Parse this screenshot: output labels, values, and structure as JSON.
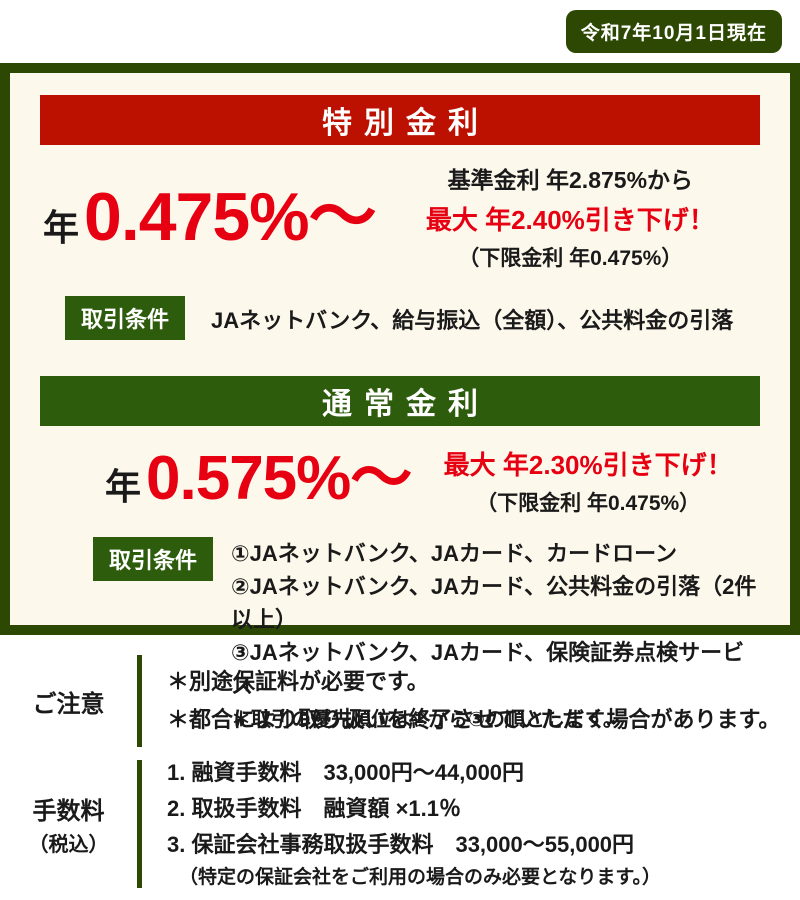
{
  "colors": {
    "dark_green": "#2c4802",
    "mid_green": "#2e5c0d",
    "banner_red": "#bc1000",
    "accent_red": "#e60012",
    "cream_bg": "#fdf8ec"
  },
  "date_badge": {
    "label": "令和7年10月1日現在"
  },
  "special": {
    "title": "特別金利",
    "rate_prefix": "年",
    "rate": "0.475%～",
    "base_line": "基準金利 年2.875%から",
    "discount_line": "最大 年2.40%引き下げ！",
    "floor_line": "（下限金利 年0.475%）",
    "cond_label": "取引条件",
    "cond_text": "JAネットバンク、給与振込（全額）、公共料金の引落"
  },
  "normal": {
    "title": "通常金利",
    "rate_prefix": "年",
    "rate": "0.575%～",
    "discount_line": "最大 年2.30%引き下げ！",
    "floor_line": "（下限金利 年0.475%）",
    "cond_label": "取引条件",
    "cond_items": [
      "①JAネットバンク、JAカード、カードローン",
      "②JAネットバンク、JAカード、公共料金の引落（2件以上）",
      "③JAネットバンク、JAカード、保険証券点検サービス"
    ],
    "cond_note": "＊取引の優先順位は①から③の順とします。"
  },
  "notice": {
    "label": "ご注意",
    "items": [
      "＊別途保証料が必要です。",
      "＊都合により取り扱いを終了させていただく場合があります。"
    ]
  },
  "fees": {
    "label_line1": "手数料",
    "label_line2": "（税込）",
    "items": [
      "1. 融資手数料　33,000円～44,000円",
      "2. 取扱手数料　融資額 ×1.1％",
      "3. 保証会社事務取扱手数料　33,000～55,000円"
    ],
    "note": "（特定の保証会社をご利用の場合のみ必要となります。）"
  }
}
